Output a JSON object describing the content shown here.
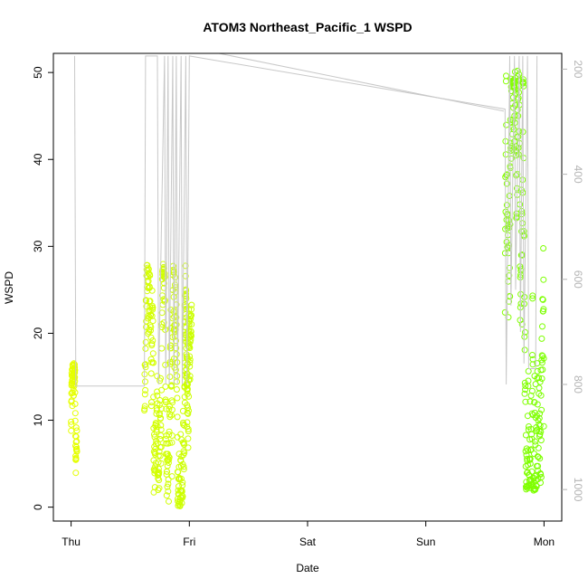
{
  "chart_data": {
    "type": "scatter",
    "title": "ATOM3 Northeast_Pacific_1 WSPD",
    "xlabel": "Date",
    "ylabel": "WSPD",
    "x_ticks": [
      "Thu",
      "Fri",
      "Sat",
      "Sun",
      "Mon"
    ],
    "y_ticks": [
      "0",
      "10",
      "20",
      "30",
      "40",
      "50"
    ],
    "y_range": [
      -1.6,
      52.2
    ],
    "y2_ticks": [
      "200",
      "400",
      "600",
      "800",
      "1000"
    ],
    "y2_range": [
      1060,
      170
    ],
    "x_range_days": [
      -0.15,
      4.15
    ],
    "grid": false,
    "colors": {
      "early": "#e6ff00",
      "late": "#7cff00",
      "line": "#c8c8c8",
      "axis": "#000000",
      "right_axis": "#b4b4b4"
    },
    "series": [
      {
        "clusters": [
          {
            "x_start_days": 0.0,
            "x_end_days": 0.05,
            "y": [
              1.4,
              16.6
            ],
            "fill": 0.1
          },
          {
            "x_start_days": 0.62,
            "x_end_days": 1.0,
            "y": [
              0.1,
              28.0
            ],
            "fill": 0.35
          },
          {
            "x_start_days": 0.96,
            "x_end_days": 1.02,
            "y": [
              12.9,
              30.5
            ],
            "fill": 0.1
          },
          {
            "x_start_days": 3.67,
            "x_end_days": 4.0,
            "y": [
              1.9,
              50.2
            ],
            "fill": 0.3
          }
        ]
      },
      {
        "points_day_pressure": [
          [
            0.03,
            175
          ],
          [
            0.04,
            803
          ],
          [
            0.62,
            803
          ],
          [
            0.63,
            175
          ],
          [
            0.73,
            175
          ],
          [
            0.74,
            800
          ],
          [
            0.79,
            175
          ],
          [
            0.8,
            800
          ],
          [
            0.82,
            175
          ],
          [
            0.83,
            800
          ],
          [
            0.86,
            175
          ],
          [
            0.87,
            800
          ],
          [
            0.89,
            175
          ],
          [
            0.9,
            800
          ],
          [
            0.93,
            175
          ],
          [
            0.94,
            800
          ],
          [
            0.97,
            175
          ],
          [
            0.98,
            800
          ],
          [
            1.0,
            175
          ],
          [
            3.67,
            276
          ],
          [
            3.68,
            800
          ],
          [
            3.71,
            175
          ],
          [
            3.72,
            650
          ],
          [
            3.75,
            175
          ],
          [
            3.76,
            620
          ],
          [
            3.79,
            175
          ],
          [
            3.8,
            700
          ],
          [
            3.82,
            175
          ],
          [
            3.83,
            760
          ],
          [
            3.86,
            175
          ],
          [
            3.87,
            770
          ],
          [
            3.93,
            770
          ],
          [
            3.94,
            175
          ]
        ]
      }
    ]
  }
}
